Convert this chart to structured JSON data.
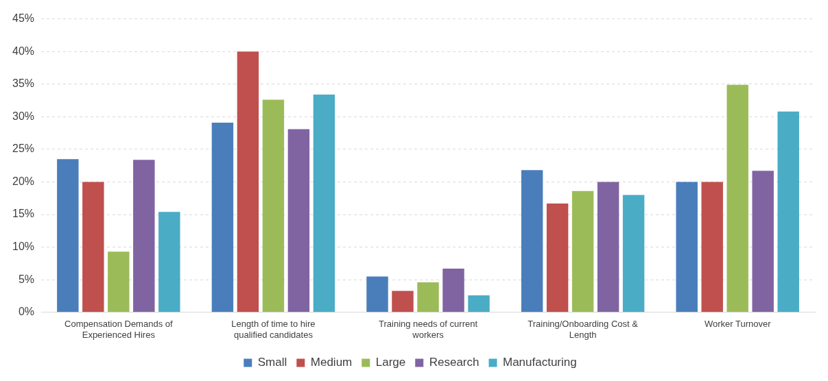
{
  "chart_data": {
    "type": "bar",
    "categories": [
      "Compensation Demands of Experienced Hires",
      "Length of time to hire qualified candidates",
      "Training needs of current workers",
      "Training/Onboarding Cost & Length",
      "Worker Turnover"
    ],
    "series": [
      {
        "name": "Small",
        "color": "#4a7ebb",
        "values": [
          23.5,
          29.1,
          5.5,
          21.8,
          20
        ]
      },
      {
        "name": "Medium",
        "color": "#c0504d",
        "values": [
          20,
          40,
          3.3,
          16.7,
          20
        ]
      },
      {
        "name": "Large",
        "color": "#9bbb59",
        "values": [
          9.3,
          32.6,
          4.6,
          18.6,
          34.9
        ]
      },
      {
        "name": "Research",
        "color": "#8064a2",
        "values": [
          23.4,
          28.1,
          6.7,
          20,
          21.7
        ]
      },
      {
        "name": "Manufacturing",
        "color": "#4bacc6",
        "values": [
          15.4,
          33.4,
          2.6,
          18,
          30.8
        ]
      }
    ],
    "ylim": [
      0,
      45
    ],
    "yticks": [
      {
        "value": 0,
        "label": "0%"
      },
      {
        "value": 5,
        "label": "5%"
      },
      {
        "value": 10,
        "label": "10%"
      },
      {
        "value": 15,
        "label": "15%"
      },
      {
        "value": 20,
        "label": "20%"
      },
      {
        "value": 25,
        "label": "25%"
      },
      {
        "value": 30,
        "label": "30%"
      },
      {
        "value": 35,
        "label": "35%"
      },
      {
        "value": 40,
        "label": "40%"
      },
      {
        "value": 45,
        "label": "45%"
      }
    ],
    "grid": "y",
    "legend": "bottom"
  }
}
